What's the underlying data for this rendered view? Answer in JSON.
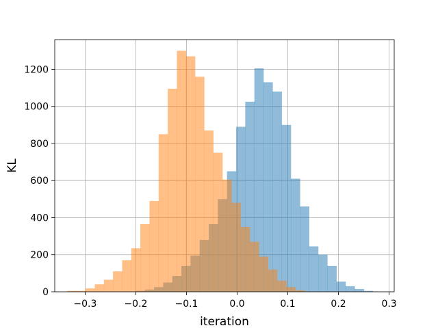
{
  "chart_data": {
    "type": "histogram",
    "title": "",
    "xlabel": "iteration",
    "ylabel": "KL",
    "xlim": [
      -0.36,
      0.31
    ],
    "ylim": [
      0,
      1360
    ],
    "grid": true,
    "xticks": [
      -0.3,
      -0.2,
      -0.1,
      0.0,
      0.1,
      0.2,
      0.3
    ],
    "xtick_labels": [
      "−0.3",
      "−0.2",
      "−0.1",
      "0.0",
      "0.1",
      "0.2",
      "0.3"
    ],
    "yticks": [
      0,
      200,
      400,
      600,
      800,
      1000,
      1200
    ],
    "ytick_labels": [
      "0",
      "200",
      "400",
      "600",
      "800",
      "1000",
      "1200"
    ],
    "series": [
      {
        "color": "#1f77b4",
        "alpha": 0.5,
        "bin_edges": [
          -0.2,
          -0.182,
          -0.164,
          -0.146,
          -0.128,
          -0.11,
          -0.092,
          -0.074,
          -0.056,
          -0.038,
          -0.02,
          -0.002,
          0.016,
          0.034,
          0.052,
          0.07,
          0.088,
          0.106,
          0.124,
          0.142,
          0.16,
          0.178,
          0.196,
          0.214,
          0.232,
          0.25,
          0.268
        ],
        "counts": [
          5,
          12,
          25,
          50,
          85,
          140,
          195,
          280,
          365,
          500,
          650,
          890,
          1025,
          1205,
          1130,
          1080,
          900,
          610,
          460,
          245,
          200,
          140,
          55,
          30,
          15,
          5
        ]
      },
      {
        "color": "#ff7f0e",
        "alpha": 0.5,
        "bin_edges": [
          -0.335,
          -0.317,
          -0.299,
          -0.281,
          -0.263,
          -0.245,
          -0.227,
          -0.209,
          -0.191,
          -0.173,
          -0.155,
          -0.137,
          -0.119,
          -0.101,
          -0.083,
          -0.065,
          -0.047,
          -0.029,
          -0.011,
          0.007,
          0.025,
          0.043,
          0.061,
          0.079,
          0.097,
          0.115,
          0.133
        ],
        "counts": [
          5,
          5,
          18,
          40,
          65,
          110,
          170,
          235,
          365,
          490,
          850,
          1095,
          1300,
          1270,
          1160,
          870,
          750,
          605,
          480,
          350,
          270,
          190,
          120,
          60,
          25,
          8
        ]
      }
    ]
  }
}
